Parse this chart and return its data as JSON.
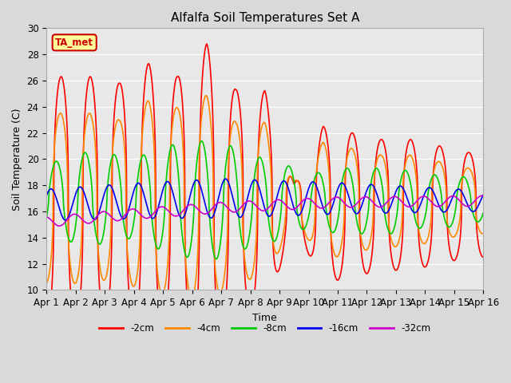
{
  "title": "Alfalfa Soil Temperatures Set A",
  "xlabel": "Time",
  "ylabel": "Soil Temperature (C)",
  "ylim": [
    10,
    30
  ],
  "xlim": [
    0,
    15
  ],
  "annotation": "TA_met",
  "annotation_color": "#cc0000",
  "annotation_bg": "#ffff99",
  "background_color": "#d9d9d9",
  "plot_bg": "#e8e8e8",
  "grid_color": "#ffffff",
  "series": [
    {
      "label": "-2cm",
      "color": "#ff0000",
      "linewidth": 1.2
    },
    {
      "label": "-4cm",
      "color": "#ff8800",
      "linewidth": 1.2
    },
    {
      "label": "-8cm",
      "color": "#00cc00",
      "linewidth": 1.2
    },
    {
      "label": "-16cm",
      "color": "#0000ee",
      "linewidth": 1.2
    },
    {
      "label": "-32cm",
      "color": "#cc00cc",
      "linewidth": 1.2
    }
  ],
  "xtick_labels": [
    "Apr 1",
    "Apr 2",
    "Apr 3",
    "Apr 4",
    "Apr 5",
    "Apr 6",
    "Apr 7",
    "Apr 8",
    "Apr 9",
    "Apr 10",
    "Apr 11",
    "Apr 12",
    "Apr 13",
    "Apr 14",
    "Apr 15",
    "Apr 16"
  ],
  "xtick_positions": [
    0,
    1,
    2,
    3,
    4,
    5,
    6,
    7,
    8,
    9,
    10,
    11,
    12,
    13,
    14,
    15
  ]
}
